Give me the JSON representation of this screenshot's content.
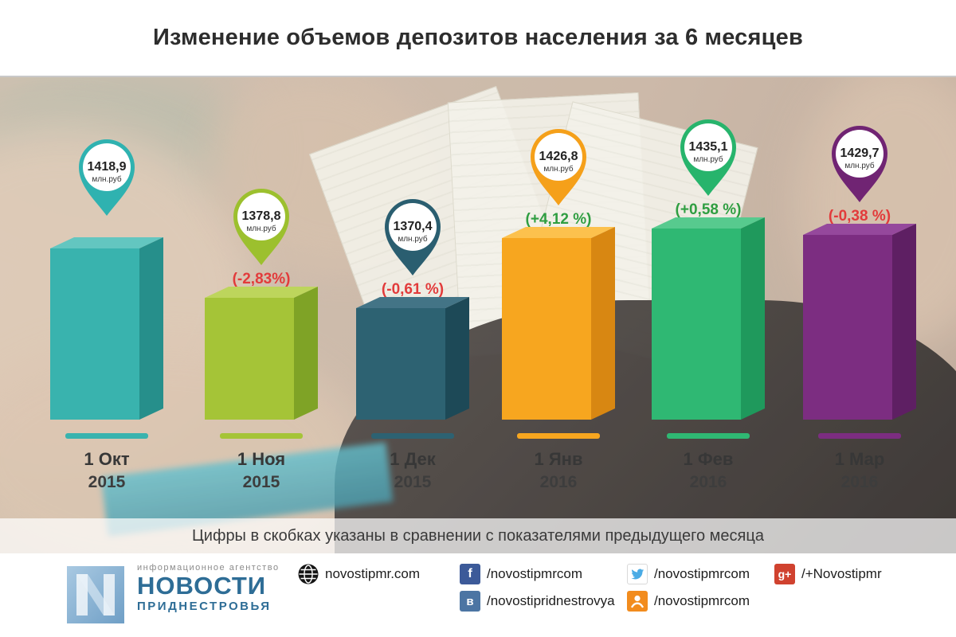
{
  "chart_data": {
    "type": "bar",
    "title": "Изменение объемов депозитов населения за 6 месяцев",
    "caption": "Цифры в скобках указаны в сравнении с показателями предыдущего месяца",
    "unit": "млн.руб",
    "ylim": [
      1280,
      1440
    ],
    "legend": "none",
    "categories": [
      "1 Окт 2015",
      "1 Ноя 2015",
      "1 Дек 2015",
      "1 Янв 2016",
      "1 Фев 2016",
      "1 Мар 2016"
    ],
    "values": [
      1418.9,
      1378.8,
      1370.4,
      1426.8,
      1435.1,
      1429.7
    ],
    "change_colors": {
      "up": "#2f9e41",
      "down": "#e23b3b"
    },
    "bars": [
      {
        "month": "1 Окт",
        "year": "2015",
        "value": 1418.9,
        "value_label": "1418,9",
        "change_label": "",
        "change_direction": "none",
        "color_front": "#39b3ae",
        "color_side": "#268f8b",
        "color_top": "#63c6c0",
        "color_pin": "#2fb2b0"
      },
      {
        "month": "1 Ноя",
        "year": "2015",
        "value": 1378.8,
        "value_label": "1378,8",
        "change_label": "(-2,83%)",
        "change_direction": "down",
        "color_front": "#a5c437",
        "color_side": "#7fa326",
        "color_top": "#bdd55c",
        "color_pin": "#9cc02e"
      },
      {
        "month": "1 Дек",
        "year": "2015",
        "value": 1370.4,
        "value_label": "1370,4",
        "change_label": "(-0,61 %)",
        "change_direction": "down",
        "color_front": "#2d6272",
        "color_side": "#1d4957",
        "color_top": "#437486",
        "color_pin": "#2a5e70"
      },
      {
        "month": "1 Янв",
        "year": "2016",
        "value": 1426.8,
        "value_label": "1426,8",
        "change_label": "(+4,12 %)",
        "change_direction": "up",
        "color_front": "#f7a61f",
        "color_side": "#d88712",
        "color_top": "#fcc14d",
        "color_pin": "#f5a01a"
      },
      {
        "month": "1 Фев",
        "year": "2016",
        "value": 1435.1,
        "value_label": "1435,1",
        "change_label": "(+0,58 %)",
        "change_direction": "up",
        "color_front": "#2fb873",
        "color_side": "#1f995c",
        "color_top": "#57ca8e",
        "color_pin": "#27b46c"
      },
      {
        "month": "1 Мар",
        "year": "2016",
        "value": 1429.7,
        "value_label": "1429,7",
        "change_label": "(-0,38 %)",
        "change_direction": "down",
        "color_front": "#7c2d81",
        "color_side": "#5e1f63",
        "color_top": "#95489c",
        "color_pin": "#702473"
      }
    ]
  },
  "footer": {
    "tagline": "информационное агентство",
    "name": "НОВОСТИ",
    "region": "ПРИДНЕСТРОВЬЯ",
    "links": [
      {
        "network": "website",
        "label": "novostipmr.com"
      },
      {
        "network": "facebook",
        "glyph": "f",
        "label": "/novostipmrcom",
        "color": "#3c5a99"
      },
      {
        "network": "twitter",
        "label": "/novostipmrcom",
        "color": "#4aabe5"
      },
      {
        "network": "google-plus",
        "glyph": "g+",
        "label": "/+Novostipmr",
        "color": "#d0422f"
      },
      {
        "network": "vk",
        "glyph": "в",
        "label": "/novostipridnestrovya",
        "color": "#4c75a3"
      },
      {
        "network": "odnoklassniki",
        "label": "/novostipmrcom",
        "color": "#f28c1e"
      }
    ]
  }
}
